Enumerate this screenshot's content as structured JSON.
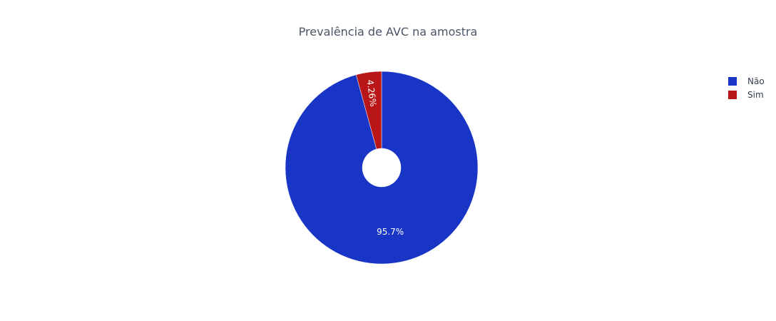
{
  "chart_data": {
    "type": "pie",
    "title": "Prevalência de AVC na amostra",
    "hole": 0.2,
    "direction": "clockwise",
    "start_angle_degrees": 0,
    "categories": [
      "Não",
      "Sim"
    ],
    "values": [
      95.74,
      4.26
    ],
    "labels": [
      "95.7%",
      "4.26%"
    ],
    "colors": [
      "#1935c5",
      "#b91717"
    ],
    "legend_position": "right",
    "legend": [
      "Não",
      "Sim"
    ]
  }
}
